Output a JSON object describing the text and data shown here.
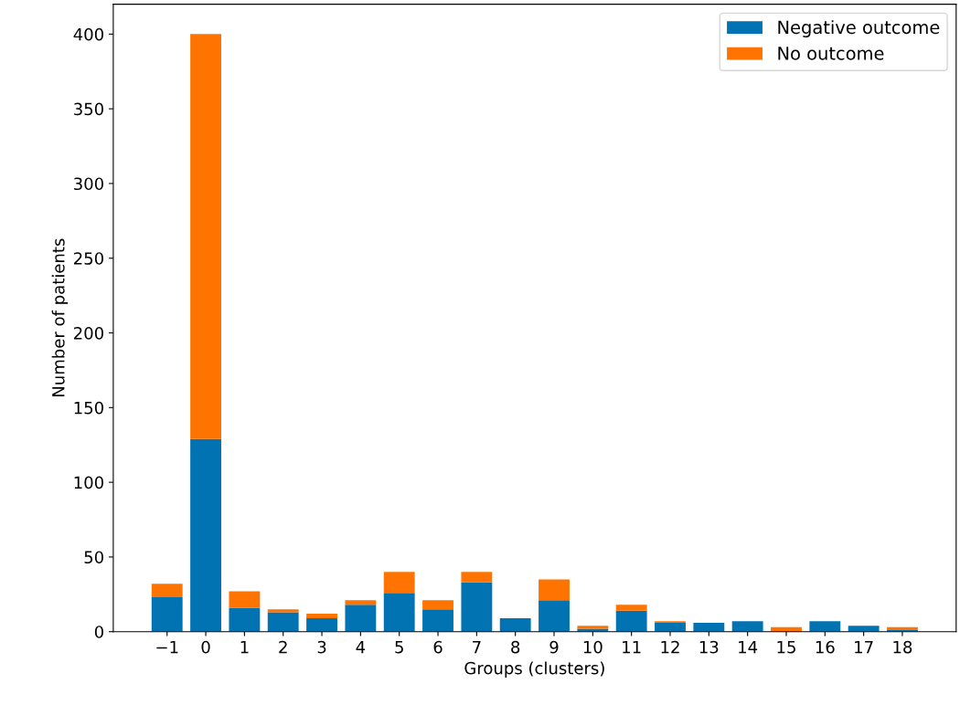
{
  "chart_data": {
    "type": "bar",
    "stacked": true,
    "xlabel": "Groups (clusters)",
    "ylabel": "Number of patients",
    "categories": [
      "−1",
      "0",
      "1",
      "2",
      "3",
      "4",
      "5",
      "6",
      "7",
      "8",
      "9",
      "10",
      "11",
      "12",
      "13",
      "14",
      "15",
      "16",
      "17",
      "18"
    ],
    "series": [
      {
        "name": "Negative outcome",
        "color": "#0173b2",
        "values": [
          23,
          129,
          16,
          13,
          9,
          18,
          26,
          15,
          33,
          9,
          21,
          2,
          14,
          6,
          6,
          7,
          0,
          7,
          4,
          1
        ]
      },
      {
        "name": "No outcome",
        "color": "#ff7400",
        "values": [
          9,
          271,
          11,
          2,
          3,
          3,
          14,
          6,
          7,
          0,
          14,
          2,
          4,
          1,
          0,
          0,
          3,
          0,
          0,
          2
        ]
      }
    ],
    "ylim": [
      0,
      420
    ],
    "yticks": [
      0,
      50,
      100,
      150,
      200,
      250,
      300,
      350,
      400
    ],
    "grid": false,
    "legend": "top right"
  }
}
